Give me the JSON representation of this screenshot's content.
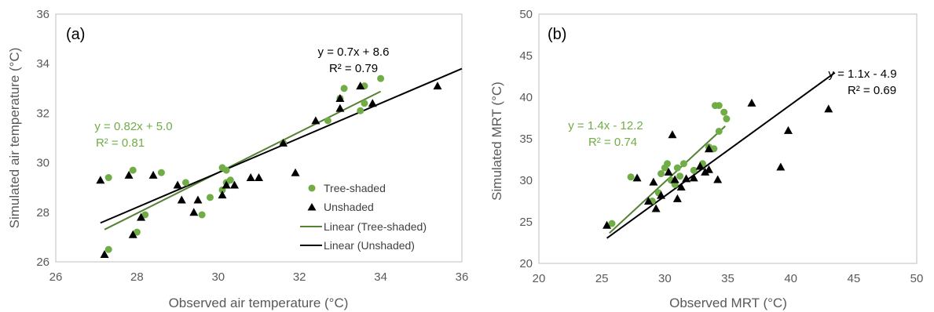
{
  "chart_data": [
    {
      "type": "scatter",
      "panel_label": "(a)",
      "xlabel": "Observed air temperature (°C)",
      "ylabel": "Simulated air temperature (°C)",
      "xlim": [
        26,
        36
      ],
      "ylim": [
        26,
        36
      ],
      "x_ticks": [
        26,
        28,
        30,
        32,
        34,
        36
      ],
      "y_ticks": [
        26,
        28,
        30,
        32,
        34,
        36
      ],
      "grid": false,
      "legend_position": "bottom-right",
      "series": [
        {
          "name": "Tree-shaded",
          "marker": "circle",
          "color": "#70AD47",
          "points": [
            [
              27.3,
              29.4
            ],
            [
              27.3,
              26.5
            ],
            [
              27.9,
              29.7
            ],
            [
              28.0,
              27.2
            ],
            [
              28.2,
              27.9
            ],
            [
              28.6,
              29.6
            ],
            [
              29.2,
              29.2
            ],
            [
              29.6,
              27.9
            ],
            [
              29.8,
              28.6
            ],
            [
              30.1,
              29.8
            ],
            [
              30.1,
              28.9
            ],
            [
              30.2,
              29.2
            ],
            [
              30.2,
              29.7
            ],
            [
              30.3,
              29.3
            ],
            [
              31.6,
              30.8
            ],
            [
              32.7,
              31.7
            ],
            [
              33.0,
              32.6
            ],
            [
              33.1,
              33.0
            ],
            [
              33.5,
              32.1
            ],
            [
              33.6,
              32.4
            ],
            [
              33.6,
              33.1
            ],
            [
              34.0,
              33.4
            ]
          ]
        },
        {
          "name": "Unshaded",
          "marker": "triangle",
          "color": "#000000",
          "points": [
            [
              27.1,
              29.3
            ],
            [
              27.2,
              26.3
            ],
            [
              27.8,
              29.5
            ],
            [
              27.9,
              27.1
            ],
            [
              28.1,
              27.8
            ],
            [
              28.4,
              29.5
            ],
            [
              29.0,
              29.1
            ],
            [
              29.1,
              28.5
            ],
            [
              29.4,
              28.0
            ],
            [
              29.5,
              28.5
            ],
            [
              30.1,
              28.7
            ],
            [
              30.2,
              29.1
            ],
            [
              30.4,
              29.1
            ],
            [
              30.8,
              29.4
            ],
            [
              31.0,
              29.4
            ],
            [
              31.6,
              30.8
            ],
            [
              31.9,
              29.6
            ],
            [
              32.4,
              31.7
            ],
            [
              33.0,
              32.2
            ],
            [
              33.0,
              32.6
            ],
            [
              33.5,
              33.1
            ],
            [
              33.8,
              32.4
            ],
            [
              35.4,
              33.1
            ]
          ]
        }
      ],
      "trendlines": [
        {
          "name": "Linear (Tree-shaded)",
          "color": "#548235",
          "slope": 0.82,
          "intercept": 5.0,
          "x_range": [
            27.2,
            34.0
          ],
          "equation": "y = 0.82x + 5.0",
          "r2": "R² = 0.81"
        },
        {
          "name": "Linear (Unshaded)",
          "color": "#000000",
          "slope": 0.7,
          "intercept": 8.6,
          "x_range": [
            27.1,
            36.0
          ],
          "equation": "y = 0.7x + 8.6",
          "r2": "R² = 0.79"
        }
      ]
    },
    {
      "type": "scatter",
      "panel_label": "(b)",
      "xlabel": "Observed MRT (°C)",
      "ylabel": "Simulated MRT (°C)",
      "xlim": [
        20,
        50
      ],
      "ylim": [
        20,
        50
      ],
      "x_ticks": [
        20,
        25,
        30,
        35,
        40,
        45,
        50
      ],
      "y_ticks": [
        20,
        25,
        30,
        35,
        40,
        45,
        50
      ],
      "grid": false,
      "series": [
        {
          "name": "Tree-shaded",
          "marker": "circle",
          "color": "#70AD47",
          "points": [
            [
              25.8,
              24.8
            ],
            [
              27.3,
              30.4
            ],
            [
              29.0,
              27.5
            ],
            [
              29.5,
              28.5
            ],
            [
              29.7,
              30.8
            ],
            [
              30.0,
              31.5
            ],
            [
              30.2,
              32.0
            ],
            [
              30.5,
              30.0
            ],
            [
              30.8,
              29.5
            ],
            [
              31.0,
              31.5
            ],
            [
              31.2,
              30.5
            ],
            [
              31.5,
              32.0
            ],
            [
              32.3,
              31.2
            ],
            [
              33.0,
              32.0
            ],
            [
              33.5,
              34.0
            ],
            [
              33.9,
              33.8
            ],
            [
              34.0,
              39.0
            ],
            [
              34.3,
              39.0
            ],
            [
              34.3,
              35.9
            ],
            [
              34.7,
              38.2
            ],
            [
              34.9,
              37.4
            ]
          ]
        },
        {
          "name": "Unshaded",
          "marker": "triangle",
          "color": "#000000",
          "points": [
            [
              25.4,
              24.6
            ],
            [
              27.8,
              30.3
            ],
            [
              28.7,
              27.5
            ],
            [
              29.1,
              29.8
            ],
            [
              29.3,
              26.6
            ],
            [
              29.7,
              28.2
            ],
            [
              30.3,
              31.0
            ],
            [
              30.6,
              35.5
            ],
            [
              30.8,
              30.1
            ],
            [
              31.0,
              27.8
            ],
            [
              31.3,
              29.2
            ],
            [
              31.7,
              30.2
            ],
            [
              32.3,
              30.3
            ],
            [
              32.8,
              31.7
            ],
            [
              33.2,
              31.0
            ],
            [
              33.5,
              33.8
            ],
            [
              33.5,
              31.3
            ],
            [
              34.2,
              30.1
            ],
            [
              36.9,
              39.3
            ],
            [
              39.2,
              31.6
            ],
            [
              39.8,
              36.0
            ],
            [
              43.0,
              38.6
            ]
          ]
        }
      ],
      "trendlines": [
        {
          "name": "Linear (Tree-shaded)",
          "color": "#548235",
          "slope": 1.4,
          "intercept": -12.2,
          "x_range": [
            25.6,
            34.8
          ],
          "equation": "y = 1.4x - 12.2",
          "r2": "R² = 0.74"
        },
        {
          "name": "Linear (Unshaded)",
          "color": "#000000",
          "slope": 1.1,
          "intercept": -4.9,
          "x_range": [
            25.4,
            43.5
          ],
          "equation": "y = 1.1x - 4.9",
          "r2": "R² = 0.69"
        }
      ]
    }
  ]
}
